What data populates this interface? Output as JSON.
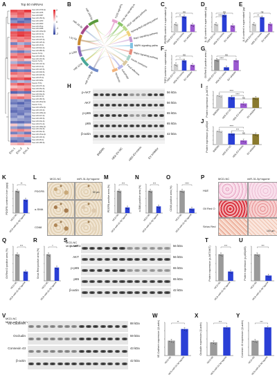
{
  "panels": {
    "a": "A",
    "b": "B",
    "c": "C",
    "d": "D",
    "e": "E",
    "f": "F",
    "g": "G",
    "h": "H",
    "i": "I",
    "j": "J",
    "k": "K",
    "l": "L",
    "m": "M",
    "n": "N",
    "o": "O",
    "p": "P",
    "q": "Q",
    "r": "R",
    "s": "S",
    "t": "T",
    "u": "U",
    "v": "V",
    "w": "W",
    "x": "X",
    "y": "Y"
  },
  "heatmap": {
    "title": "Top 50 miRNAs",
    "columns": [
      "EVs-1",
      "EVs-2",
      "EVs-3"
    ],
    "legend": [
      "2",
      "1",
      "0",
      "-1",
      "-2"
    ],
    "colors": {
      "high": "#e21f26",
      "mid": "#ffffff",
      "low": "#2c3e9e"
    },
    "genes": [
      "hsa-miR-4709-3p",
      "hsa-miR-1246",
      "hsa-miR-6087",
      "hsa-miR-150-5p",
      "hsa-miR-1290",
      "hsa-miR-3960",
      "hsa-miR-451a",
      "hsa-miR-4488",
      "hsa-miR-146a-5p",
      "hsa-miR-31-5p",
      "hsa-miR-21-5p",
      "hsa-miR-223-3p",
      "hsa-miR-126-3p",
      "hsa-miR-16-5p",
      "hsa-miR-92a-3p",
      "hsa-miR-486-5p",
      "hsa-let-7b-5p",
      "hsa-miR-10b-5p",
      "hsa-miR-191-5p",
      "hsa-let-7a-5p",
      "hsa-miR-142-3p",
      "hsa-miR-24-3p",
      "hsa-miR-122-5p",
      "hsa-miR-30d-5p",
      "hsa-miR-423-5p",
      "hsa-miR-25-3p",
      "hsa-miR-320a",
      "hsa-let-7f-5p",
      "hsa-miR-27b-3p",
      "hsa-miR-26a-5p",
      "hsa-miR-99b-5p",
      "hsa-miR-30a-5p",
      "hsa-miR-22-3p",
      "hsa-miR-182-5p",
      "hsa-miR-181a-5p",
      "hsa-let-7i-5p",
      "hsa-miR-125a-5p",
      "hsa-miR-143-3p",
      "hsa-miR-148a-3p",
      "hsa-miR-221-3p",
      "hsa-miR-100-5p",
      "hsa-miR-23a-3p",
      "hsa-miR-27a-3p",
      "hsa-miR-199a-3p",
      "hsa-miR-10a-5p",
      "hsa-miR-30e-5p",
      "hsa-miR-151a-3p",
      "hsa-miR-140-3p",
      "hsa-miR-28-3p",
      "hsa-miR-185-5p"
    ],
    "values": [
      [
        1.6,
        1.4,
        1.8
      ],
      [
        1.2,
        1.5,
        1.1
      ],
      [
        0.9,
        1.3,
        1.0
      ],
      [
        -1.4,
        -1.2,
        -1.6
      ],
      [
        -1.1,
        -1.5,
        -1.3
      ],
      [
        1.7,
        1.6,
        1.4
      ],
      [
        1.3,
        1.0,
        1.2
      ],
      [
        -0.9,
        -1.3,
        -1.0
      ],
      [
        1.5,
        1.7,
        1.6
      ],
      [
        1.4,
        1.8,
        1.5
      ],
      [
        1.2,
        1.1,
        1.3
      ],
      [
        0.8,
        1.2,
        0.9
      ],
      [
        -1.3,
        -0.8,
        -1.1
      ],
      [
        1.1,
        0.9,
        1.4
      ],
      [
        0.7,
        1.0,
        0.8
      ],
      [
        -1.2,
        -1.4,
        -1.0
      ],
      [
        1.0,
        1.3,
        1.1
      ],
      [
        1.4,
        1.2,
        1.6
      ],
      [
        0.6,
        0.9,
        0.5
      ],
      [
        -0.8,
        -1.1,
        -1.2
      ],
      [
        1.1,
        1.5,
        1.3
      ],
      [
        0.9,
        0.7,
        1.0
      ],
      [
        -1.5,
        -1.3,
        -1.4
      ],
      [
        1.3,
        1.1,
        1.2
      ],
      [
        0.8,
        1.0,
        0.7
      ],
      [
        1.5,
        1.4,
        1.7
      ],
      [
        -1.0,
        -0.7,
        -0.9
      ],
      [
        1.2,
        1.6,
        1.3
      ],
      [
        0.6,
        0.8,
        0.9
      ],
      [
        1.3,
        1.1,
        1.5
      ],
      [
        -1.6,
        -1.4,
        -1.5
      ],
      [
        0.7,
        0.5,
        0.9
      ],
      [
        1.1,
        1.3,
        1.0
      ],
      [
        -1.2,
        -1.0,
        -1.4
      ],
      [
        -1.4,
        -1.6,
        -1.2
      ],
      [
        -0.9,
        -1.2,
        -1.1
      ],
      [
        -1.3,
        -1.1,
        -1.5
      ],
      [
        -1.5,
        -1.3,
        -1.2
      ],
      [
        -1.1,
        -1.4,
        -0.9
      ],
      [
        -1.2,
        -0.8,
        -1.3
      ],
      [
        -0.8,
        -1.0,
        -1.1
      ],
      [
        -1.4,
        -1.5,
        -1.3
      ],
      [
        0.5,
        -0.6,
        0.4
      ],
      [
        -1.0,
        -1.3,
        -1.2
      ],
      [
        0.9,
        1.1,
        0.8
      ],
      [
        -1.3,
        -1.0,
        -1.4
      ],
      [
        0.7,
        0.9,
        1.0
      ],
      [
        -1.1,
        -1.2,
        -0.9
      ],
      [
        -1.5,
        -1.3,
        -1.6
      ],
      [
        0.6,
        0.8,
        0.5
      ]
    ]
  },
  "chord": {
    "mirnas": [
      "miR-4709-3p",
      "miR-1246",
      "miR-1290",
      "miR-31-5p",
      "miR-24-3p",
      "miR-150-5p"
    ],
    "pathways": [
      "TGFβ signaling pathway",
      "PI3K-Akt signaling pathway",
      "VEGF signaling pathway",
      "Sphingolipid signaling pathway",
      "Rap1 signaling pathway",
      "MAPK signaling pathway",
      "Hippo signaling pathway",
      "Insulin resistance",
      "Focal adhesion",
      "Autophagy",
      "Apoptosis"
    ],
    "colors": [
      "#e7a3cf",
      "#8bc56a",
      "#b8d98a",
      "#f0d27a",
      "#c79ad1",
      "#7fc2e3",
      "#e58b7b",
      "#a6d2c7",
      "#d9c8a0",
      "#b5b5e8",
      "#f2b27a"
    ],
    "mirna_colors": [
      "#6c88c9",
      "#4aa79a",
      "#8a6cb8",
      "#c98a2e",
      "#a64a8a",
      "#5b9b3d"
    ]
  },
  "bars": {
    "c": {
      "ylabel": "PDGFB content in supernatant (pg/mL)",
      "ns": "ns",
      "sig": "**",
      "groups": [
        "HEK-EV-NC",
        "HEK-EV-mimic",
        "EV inhibitor"
      ],
      "values": [
        1.0,
        1.9,
        0.9
      ]
    },
    "d": {
      "ylabel": "IL-1β content in supernatant (pg/mL)",
      "ns": "ns",
      "sig": "****",
      "groups": [
        "HEK-EV-NC",
        "HEK-EV-mimic",
        "EV inhibitor"
      ],
      "values": [
        1.0,
        2.1,
        0.8
      ]
    },
    "e": {
      "ylabel": "IL-6 content in supernatant (pg/mL)",
      "ns": "ns",
      "sig": "**",
      "groups": [
        "HEK-EV-NC",
        "HEK-EV-mimic",
        "EV inhibitor"
      ],
      "values": [
        1.0,
        1.8,
        1.0
      ]
    },
    "f": {
      "ylabel": "TGFβ content in supernatant (pg/mL)",
      "ns": "ns",
      "sig": "*",
      "groups": [
        "HEK-EV-NC",
        "HEK-EV-mimic",
        "EV inhibitor"
      ],
      "values": [
        1.0,
        1.6,
        0.9
      ]
    },
    "g": {
      "ylabel": "Oil Red O positive area (%)",
      "ns": "ns",
      "sig": "****",
      "groups": [
        "HEK-EV-NC",
        "HEK-EV-mimic",
        "EV inhibitor"
      ],
      "values": [
        1.0,
        0.3,
        0.95
      ]
    },
    "i": {
      "ylabel": "Protein expression (p-AKT/AKT)",
      "sig1": "****",
      "sig2": "****",
      "ns": "ns",
      "groups": [
        "BMDMs",
        "HEK-EV-NC",
        "HEK-EV-mimic",
        "EV inhibitor"
      ],
      "values": [
        1.0,
        0.85,
        0.35,
        0.8
      ]
    },
    "j": {
      "ylabel": "Protein expression (p-p65/p65)",
      "sig1": "****",
      "sig2": "***",
      "ns": "ns",
      "groups": [
        "BMDMs",
        "HEK-EV-NC",
        "HEK-EV-mimic",
        "EV inhibitor"
      ],
      "values": [
        1.0,
        0.8,
        0.3,
        0.75
      ]
    },
    "k": {
      "ylabel": "PDGFB content in liver (pg/g)",
      "sig": "**",
      "groups": [
        "MCD-NC",
        "MCD-miR-31-5p^agomir"
      ],
      "values": [
        1.0,
        0.6
      ]
    },
    "m": {
      "ylabel": "PDGFB positive area (%)",
      "sig": "***",
      "groups": [
        "MCD-NC",
        "MCD-miR-31-5p^agomir"
      ],
      "values": [
        1.0,
        0.25
      ]
    },
    "n": {
      "ylabel": "α-SMA positive area (%)",
      "sig": "***",
      "groups": [
        "MCD-NC",
        "MCD-miR-31-5p^agomir"
      ],
      "values": [
        1.0,
        0.3
      ]
    },
    "o": {
      "ylabel": "CD68 positive area (%)",
      "sig": "****",
      "groups": [
        "MCD-NC",
        "MCD-miR-31-5p^agomir"
      ],
      "values": [
        1.0,
        0.2
      ]
    },
    "q": {
      "ylabel": "Oil Red O positive area (%)",
      "sig": "***",
      "groups": [
        "MCD-NC",
        "MCD-miR-31-5p^agomir"
      ],
      "values": [
        1.0,
        0.35
      ]
    },
    "r": {
      "ylabel": "Sirius Red positive area (%)",
      "sig": "*",
      "groups": [
        "MCD-NC",
        "MCD-miR-31-5p^agomir"
      ],
      "values": [
        1.0,
        0.5
      ]
    },
    "t": {
      "ylabel": "Protein expression (p-AKT/AKT)",
      "sig": "***",
      "groups": [
        "MCD-NC",
        "MCD-miR-31-5p^agomir"
      ],
      "values": [
        1.0,
        0.35
      ]
    },
    "u": {
      "ylabel": "Protein expression (p-p65/p65)",
      "sig": "***",
      "groups": [
        "MCD-NC",
        "MCD-miR-31-5p^agomir"
      ],
      "values": [
        1.0,
        0.2
      ]
    },
    "w": {
      "ylabel": "VE-Cadherin expression (/β-actin)",
      "sig": "**",
      "groups": [
        "MCD-NC",
        "MCD-miR-31-5p^agomir"
      ],
      "values": [
        0.45,
        0.8
      ]
    },
    "x": {
      "ylabel": "Occludin expression (/β-actin)",
      "sig": "***",
      "groups": [
        "MCD-NC",
        "MCD-miR-31-5p^agomir"
      ],
      "values": [
        0.4,
        0.85
      ]
    },
    "y": {
      "ylabel": "Connexin 43 expression (/β-actin)",
      "sig": "***",
      "groups": [
        "MCD-NC",
        "MCD-miR-31-5p^agomir"
      ],
      "values": [
        0.45,
        0.85
      ]
    }
  },
  "colors": {
    "purple": "#9b59d0",
    "blue": "#2a3fd6",
    "gray": "#9a9a9a",
    "olive": "#8a7a2e",
    "navy": "#1f2a8a",
    "light": "#cfcfcf"
  },
  "blot_h": {
    "proteins": [
      "p-AKT",
      "AKT",
      "p-p65",
      "p65",
      "β-actin"
    ],
    "kda": [
      "56 kDa",
      "56 kDa",
      "65 kDa",
      "65 kDa",
      "42 kDa"
    ],
    "lanes": [
      "BMDMs",
      "HEK-EV-NC",
      "HEK-EV-mimic",
      "EV inhibitor"
    ]
  },
  "ihc_l": {
    "cols": [
      "MCD-NC",
      "miR-31-5p^agomir"
    ],
    "rows": [
      "PDGFB",
      "α-SMA",
      "CD68"
    ],
    "scale": "50 μm"
  },
  "stain_p": {
    "cols": [
      "MCD-NC",
      "miR-31-5p^agomir"
    ],
    "rows": [
      "H&E",
      "Oil Red O",
      "Sirius Red"
    ],
    "scale": "100 μm"
  },
  "blot_s": {
    "proteins": [
      "p-AKT",
      "AKT",
      "p-p65",
      "p65",
      "β-actin"
    ],
    "kda": [
      "56 kDa",
      "56 kDa",
      "65 kDa",
      "65 kDa",
      "42 kDa"
    ],
    "groups": [
      "MCD-NC",
      "MCD-miR-31-5p^agomir"
    ]
  },
  "blot_v": {
    "proteins": [
      "VE-Cadherin",
      "Occludin",
      "Connexin 43",
      "β-actin"
    ],
    "kda": [
      "88 kDa",
      "59 kDa",
      "43 kDa",
      "42 kDa"
    ],
    "groups": [
      "MCD-NC",
      "MCD-miR-31-5p^agomir"
    ]
  }
}
